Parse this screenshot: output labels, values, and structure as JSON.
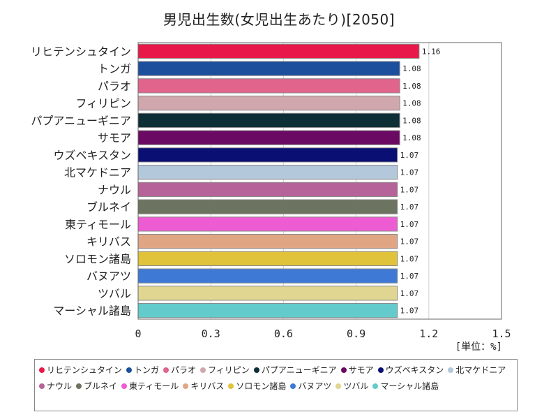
{
  "chart_data": {
    "type": "bar",
    "orientation": "horizontal",
    "title": "男児出生数(女児出生あたり)[2050]",
    "unit_label": "[単位：%]",
    "xlim": [
      0,
      1.5
    ],
    "xticks": [
      "0",
      "0.3",
      "0.6",
      "0.9",
      "1.2",
      "1.5"
    ],
    "xtick_values": [
      0,
      0.3,
      0.6,
      0.9,
      1.2,
      1.5
    ],
    "grid": true,
    "legend_position": "bottom",
    "categories": [
      "リヒテンシュタイン",
      "トンガ",
      "パラオ",
      "フィリピン",
      "パプアニューギニア",
      "サモア",
      "ウズベキスタン",
      "北マケドニア",
      "ナウル",
      "ブルネイ",
      "東ティモール",
      "キリバス",
      "ソロモン諸島",
      "バヌアツ",
      "ツバル",
      "マーシャル諸島"
    ],
    "values": [
      1.16,
      1.08,
      1.08,
      1.08,
      1.08,
      1.08,
      1.07,
      1.07,
      1.07,
      1.07,
      1.07,
      1.07,
      1.07,
      1.07,
      1.07,
      1.07
    ],
    "value_labels": [
      "1.16",
      "1.08",
      "1.08",
      "1.08",
      "1.08",
      "1.08",
      "1.07",
      "1.07",
      "1.07",
      "1.07",
      "1.07",
      "1.07",
      "1.07",
      "1.07",
      "1.07",
      "1.07"
    ],
    "colors": [
      "#e8194a",
      "#1c4f9c",
      "#e0648c",
      "#d0a7ac",
      "#0d2f36",
      "#6a0a62",
      "#0a0f73",
      "#b3c8db",
      "#b6639a",
      "#6c7461",
      "#ed5cd2",
      "#e0a683",
      "#e1c23b",
      "#3f79d6",
      "#e0d691",
      "#63cbcb"
    ]
  }
}
